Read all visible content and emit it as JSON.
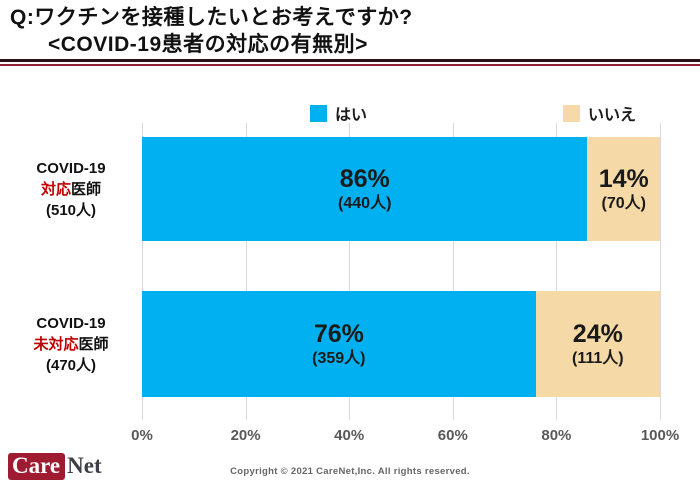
{
  "header": {
    "title_line1": "Q:ワクチンを接種したいとお考えですか?",
    "title_line2": "<COVID-19患者の対応の有無別>"
  },
  "legend": {
    "yes": "はい",
    "no": "いいえ"
  },
  "colors": {
    "yes": "#00B0F0",
    "no": "#F5D9A6",
    "accent_red": "#C00000",
    "rule_dark": "#2B1117",
    "rule_maroon": "#8E2436",
    "brand_crimson": "#9E1B32"
  },
  "chart_data": {
    "type": "bar",
    "orientation": "horizontal",
    "stacked": true,
    "unit": "percent",
    "categories": [
      "COVID-19対応医師(510人)",
      "COVID-19未対応医師(470人)"
    ],
    "series": [
      {
        "name": "はい",
        "values": [
          86,
          76
        ],
        "counts": [
          440,
          359
        ],
        "color": "#00B0F0"
      },
      {
        "name": "いいえ",
        "values": [
          14,
          24
        ],
        "counts": [
          70,
          111
        ],
        "color": "#F5D9A6"
      }
    ],
    "x_ticks": [
      "0%",
      "20%",
      "40%",
      "60%",
      "80%",
      "100%"
    ],
    "xlim": [
      0,
      100
    ],
    "grid": true,
    "legend_position": "top"
  },
  "rows": [
    {
      "label_line1": "COVID-19",
      "label_highlight": "対応",
      "label_suffix": "医師",
      "label_line3": "(510人)",
      "segments": [
        {
          "series": "yes",
          "pct": 86,
          "pct_label": "86%",
          "count_label": "(440人)"
        },
        {
          "series": "no",
          "pct": 14,
          "pct_label": "14%",
          "count_label": "(70人)"
        }
      ]
    },
    {
      "label_line1": "COVID-19",
      "label_highlight": "未対応",
      "label_suffix": "医師",
      "label_line3": "(470人)",
      "segments": [
        {
          "series": "yes",
          "pct": 76,
          "pct_label": "76%",
          "count_label": "(359人)"
        },
        {
          "series": "no",
          "pct": 24,
          "pct_label": "24%",
          "count_label": "(111人)"
        }
      ]
    }
  ],
  "footer": {
    "logo_care": "Care",
    "logo_net": "Net",
    "copyright": "Copyright © 2021 CareNet,Inc.  All rights reserved."
  }
}
